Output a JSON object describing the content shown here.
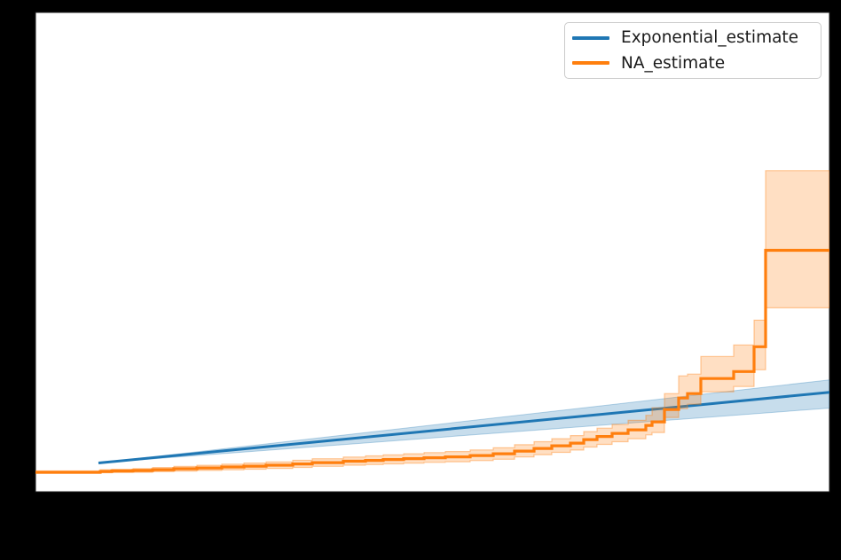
{
  "figure": {
    "background_color": "#000000",
    "plot_background_color": "#ffffff",
    "spine_color": "#1b1b1b"
  },
  "legend": {
    "position": "upper right",
    "items": [
      {
        "label": "Exponential_estimate",
        "color": "#1f77b4"
      },
      {
        "label": "NA_estimate",
        "color": "#ff7f0e"
      }
    ]
  },
  "chart_data": {
    "type": "line",
    "title": "",
    "xlabel": "",
    "ylabel": "",
    "grid": false,
    "legend_position": "upper right",
    "tick_labels_visible": false,
    "coords_note": "axes-fraction coordinates: x 0=left spine, 1=right spine; y 0=bottom spine, 1=top spine (no tick labels visible in figure)",
    "series": [
      {
        "name": "Exponential_estimate",
        "style": "line",
        "color": "#1f77b4",
        "band_fill": "rgba(31,119,180,0.25)",
        "band_edge": "rgba(31,119,180,0.30)",
        "line": [
          [
            0.0793,
            0.06
          ],
          [
            1.0,
            0.2076
          ]
        ],
        "band_upper": [
          [
            0.0793,
            0.06
          ],
          [
            1.0,
            0.2334
          ]
        ],
        "band_lower": [
          [
            0.0793,
            0.06
          ],
          [
            1.0,
            0.1744
          ]
        ]
      },
      {
        "name": "NA_estimate",
        "style": "step-post",
        "color": "#ff7f0e",
        "band_fill": "rgba(255,127,14,0.25)",
        "band_edge": "rgba(255,127,14,0.40)",
        "steps": [
          [
            0.0,
            0.0406,
            0.0434,
            0.0387
          ],
          [
            0.0816,
            0.0424,
            0.0461,
            0.0397
          ],
          [
            0.0961,
            0.0434,
            0.047,
            0.0402
          ],
          [
            0.1229,
            0.0443,
            0.0483,
            0.0406
          ],
          [
            0.1475,
            0.0461,
            0.0507,
            0.0419
          ],
          [
            0.1743,
            0.048,
            0.053,
            0.0432
          ],
          [
            0.2034,
            0.0498,
            0.0552,
            0.0445
          ],
          [
            0.2346,
            0.0517,
            0.0574,
            0.0458
          ],
          [
            0.2626,
            0.0535,
            0.0598,
            0.0472
          ],
          [
            0.2905,
            0.0554,
            0.0622,
            0.0487
          ],
          [
            0.324,
            0.0581,
            0.0657,
            0.0509
          ],
          [
            0.3486,
            0.0609,
            0.069,
            0.0531
          ],
          [
            0.3877,
            0.0637,
            0.0725,
            0.0554
          ],
          [
            0.4156,
            0.0655,
            0.0749,
            0.0568
          ],
          [
            0.438,
            0.0673,
            0.0771,
            0.0583
          ],
          [
            0.4637,
            0.0692,
            0.0793,
            0.0598
          ],
          [
            0.4894,
            0.071,
            0.0817,
            0.0613
          ],
          [
            0.5162,
            0.0729,
            0.0839,
            0.0627
          ],
          [
            0.5475,
            0.0756,
            0.0873,
            0.065
          ],
          [
            0.5765,
            0.0793,
            0.0917,
            0.0679
          ],
          [
            0.6034,
            0.0849,
            0.0982,
            0.0727
          ],
          [
            0.6279,
            0.0904,
            0.1044,
            0.0775
          ],
          [
            0.6503,
            0.0959,
            0.1107,
            0.0823
          ],
          [
            0.6737,
            0.1015,
            0.1172,
            0.0871
          ],
          [
            0.6905,
            0.1089,
            0.1255,
            0.0934
          ],
          [
            0.7073,
            0.1153,
            0.1328,
            0.0989
          ],
          [
            0.7263,
            0.1218,
            0.1404,
            0.1044
          ],
          [
            0.7464,
            0.1292,
            0.1489,
            0.1107
          ],
          [
            0.7687,
            0.1384,
            0.1596,
            0.1186
          ],
          [
            0.7765,
            0.1458,
            0.1753,
            0.1236
          ],
          [
            0.7922,
            0.1716,
            0.2048,
            0.155
          ],
          [
            0.8101,
            0.1956,
            0.2417,
            0.1734
          ],
          [
            0.8212,
            0.2048,
            0.2454,
            0.1827
          ],
          [
            0.838,
            0.2362,
            0.2823,
            0.2085
          ],
          [
            0.8793,
            0.2509,
            0.3063,
            0.2196
          ],
          [
            0.905,
            0.3026,
            0.3579,
            0.2546
          ],
          [
            0.9196,
            0.5037,
            0.6697,
            0.3838
          ],
          [
            1.0,
            0.5037,
            0.6697,
            0.3838
          ]
        ]
      }
    ]
  }
}
